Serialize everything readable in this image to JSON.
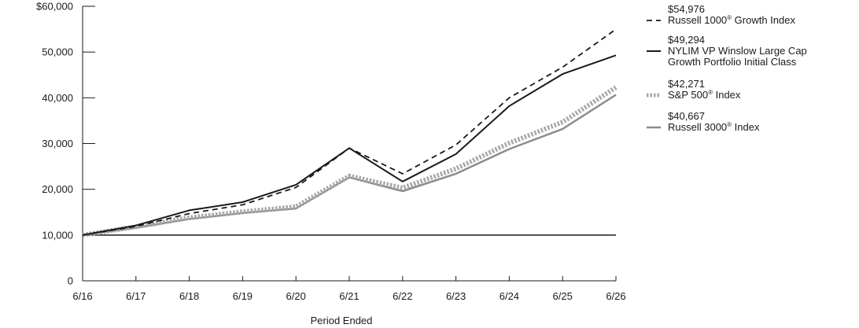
{
  "chart_data": {
    "type": "line",
    "title": "",
    "xlabel": "Period Ended",
    "ylabel": "",
    "categories": [
      "6/16",
      "6/17",
      "6/18",
      "6/19",
      "6/20",
      "6/21",
      "6/22",
      "6/23",
      "6/24",
      "6/25",
      "6/26"
    ],
    "ylim": [
      0,
      60000
    ],
    "yticks": [
      0,
      10000,
      20000,
      30000,
      40000,
      50000,
      60000
    ],
    "ytick_labels": [
      "0",
      "10,000",
      "20,000",
      "30,000",
      "40,000",
      "50,000",
      "$60,000"
    ],
    "reference_line": 10000,
    "grid": false,
    "legend_position": "right",
    "series": [
      {
        "name_main": "Russell 1000",
        "name_mark": "®",
        "name_suffix": " Growth Index",
        "name_line2": "",
        "end_value_label": "$54,976",
        "style": "dashed",
        "color": "#1a1a1a",
        "values": [
          10000,
          11900,
          14700,
          16600,
          20400,
          29000,
          23400,
          29700,
          40000,
          46700,
          54976
        ]
      },
      {
        "name_main": "NYLIM VP Winslow Large Cap",
        "name_mark": "",
        "name_suffix": "",
        "name_line2": "Growth Portfolio Initial Class",
        "end_value_label": "$49,294",
        "style": "solid",
        "color": "#1a1a1a",
        "values": [
          10000,
          12100,
          15400,
          17200,
          21000,
          29000,
          21700,
          27700,
          38200,
          45200,
          49294
        ]
      },
      {
        "name_main": "S&P 500",
        "name_mark": "®",
        "name_suffix": " Index",
        "name_line2": "",
        "end_value_label": "$42,271",
        "style": "dotted",
        "color": "#a8a8a8",
        "values": [
          10000,
          11800,
          13800,
          15100,
          16200,
          22900,
          20300,
          24500,
          30100,
          34700,
          42271
        ]
      },
      {
        "name_main": "Russell 3000",
        "name_mark": "®",
        "name_suffix": "  Index",
        "name_line2": "",
        "end_value_label": "$40,667",
        "style": "solid-thick",
        "color": "#8c8c8c",
        "values": [
          10000,
          11600,
          13500,
          14800,
          15800,
          22600,
          19600,
          23400,
          28800,
          33200,
          40667
        ]
      }
    ]
  }
}
